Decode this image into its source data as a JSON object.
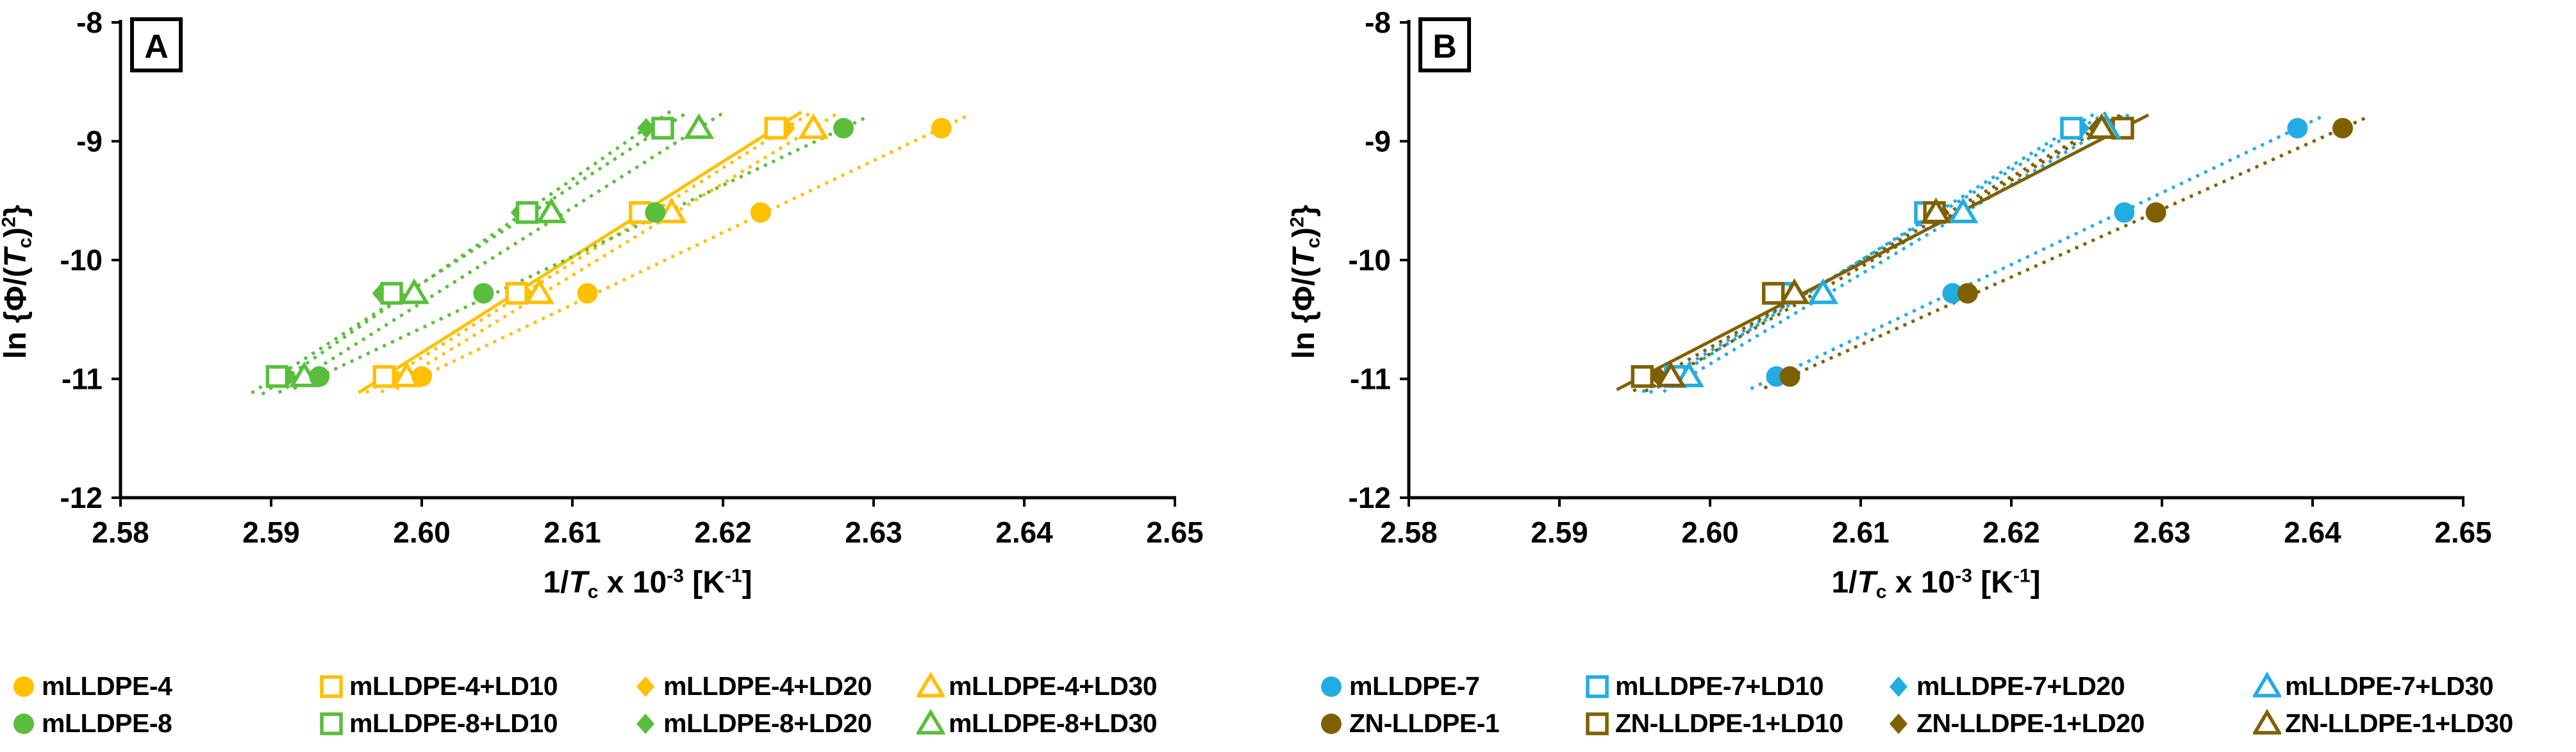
{
  "colors": {
    "yellow": "#FFC000",
    "green": "#5ABE3C",
    "blue": "#23ACE2",
    "brown": "#7F6000",
    "axis": "#000000"
  },
  "chart_data": [
    {
      "type": "scatter",
      "panel_label": "A",
      "xlabel_parts": [
        {
          "t": "1/"
        },
        {
          "t": "T",
          "i": 1
        },
        {
          "t": "c",
          "sub": 1
        },
        {
          "t": " x 10"
        },
        {
          "t": "-3",
          "sup": 1
        },
        {
          "t": " [K"
        },
        {
          "t": "-1",
          "sup": 1
        },
        {
          "t": "]"
        }
      ],
      "ylabel_parts": [
        {
          "t": "ln {Φ/("
        },
        {
          "t": "T",
          "i": 1
        },
        {
          "t": "c",
          "sub": 1
        },
        {
          "t": ")"
        },
        {
          "t": "2",
          "sup": 1
        },
        {
          "t": "}"
        }
      ],
      "xlim": [
        2.58,
        2.65
      ],
      "ylim": [
        -12,
        -8
      ],
      "xticks": [
        "2.58",
        "2.59",
        "2.60",
        "2.61",
        "2.62",
        "2.63",
        "2.64",
        "2.65"
      ],
      "yticks": [
        "-8",
        "-9",
        "-10",
        "-11",
        "-12"
      ],
      "grid": false,
      "series": [
        {
          "name": "mLLDPE-4",
          "marker": "circle",
          "color": "yellow",
          "line": "dotted",
          "x": [
            2.6345,
            2.6225,
            2.611,
            2.6
          ],
          "y": [
            -8.89,
            -9.6,
            -10.28,
            -10.98
          ]
        },
        {
          "name": "mLLDPE-4+LD10",
          "marker": "square",
          "color": "yellow",
          "line": "solid",
          "x": [
            2.6235,
            2.6145,
            2.6063,
            2.5975
          ],
          "y": [
            -8.89,
            -9.6,
            -10.28,
            -10.98
          ]
        },
        {
          "name": "mLLDPE-4+LD20",
          "marker": "diamond",
          "color": "yellow",
          "line": "dotted",
          "x": [
            2.6242,
            2.615,
            2.6068,
            2.598
          ],
          "y": [
            -8.89,
            -9.6,
            -10.28,
            -10.98
          ]
        },
        {
          "name": "mLLDPE-4+LD30",
          "marker": "triangle",
          "color": "yellow",
          "line": "dotted",
          "x": [
            2.626,
            2.6166,
            2.6078,
            2.599
          ],
          "y": [
            -8.89,
            -9.6,
            -10.28,
            -10.98
          ]
        },
        {
          "name": "mLLDPE-8",
          "marker": "circle",
          "color": "green",
          "line": "dotted",
          "x": [
            2.628,
            2.6155,
            2.6041,
            2.5932
          ],
          "y": [
            -8.89,
            -9.6,
            -10.28,
            -10.98
          ]
        },
        {
          "name": "mLLDPE-8+LD10",
          "marker": "square",
          "color": "green",
          "line": "dotted",
          "x": [
            2.616,
            2.607,
            2.598,
            2.5904
          ],
          "y": [
            -8.89,
            -9.6,
            -10.28,
            -10.98
          ]
        },
        {
          "name": "mLLDPE-8+LD20",
          "marker": "diamond",
          "color": "green",
          "line": "dotted",
          "x": [
            2.6149,
            2.6065,
            2.5973,
            2.5911
          ],
          "y": [
            -8.89,
            -9.6,
            -10.28,
            -10.98
          ]
        },
        {
          "name": "mLLDPE-8+LD30",
          "marker": "triangle",
          "color": "green",
          "line": "dotted",
          "x": [
            2.6184,
            2.6086,
            2.5995,
            2.5922
          ],
          "y": [
            -8.89,
            -9.6,
            -10.28,
            -10.98
          ]
        }
      ]
    },
    {
      "type": "scatter",
      "panel_label": "B",
      "xlabel_parts": [
        {
          "t": "1/"
        },
        {
          "t": "T",
          "i": 1
        },
        {
          "t": "c",
          "sub": 1
        },
        {
          "t": " x 10"
        },
        {
          "t": "-3",
          "sup": 1
        },
        {
          "t": " [K"
        },
        {
          "t": "-1",
          "sup": 1
        },
        {
          "t": "]"
        }
      ],
      "ylabel_parts": [
        {
          "t": "ln {Φ/("
        },
        {
          "t": "T",
          "i": 1
        },
        {
          "t": "c",
          "sub": 1
        },
        {
          "t": ")"
        },
        {
          "t": "2",
          "sup": 1
        },
        {
          "t": "}"
        }
      ],
      "xlim": [
        2.58,
        2.65
      ],
      "ylim": [
        -12,
        -8
      ],
      "xticks": [
        "2.58",
        "2.59",
        "2.60",
        "2.61",
        "2.62",
        "2.63",
        "2.64",
        "2.65"
      ],
      "yticks": [
        "-8",
        "-9",
        "-10",
        "-11",
        "-12"
      ],
      "grid": false,
      "series": [
        {
          "name": "mLLDPE-7",
          "marker": "circle",
          "color": "blue",
          "line": "dotted",
          "x": [
            2.639,
            2.6275,
            2.6161,
            2.6044
          ],
          "y": [
            -8.89,
            -9.6,
            -10.28,
            -10.98
          ]
        },
        {
          "name": "mLLDPE-7+LD10",
          "marker": "square",
          "color": "blue",
          "line": "dotted",
          "x": [
            2.624,
            2.6143,
            2.6047,
            2.5977
          ],
          "y": [
            -8.89,
            -9.6,
            -10.28,
            -10.98
          ]
        },
        {
          "name": "mLLDPE-7+LD20",
          "marker": "diamond",
          "color": "blue",
          "line": "dotted",
          "x": [
            2.6246,
            2.6148,
            2.6052,
            2.5972
          ],
          "y": [
            -8.89,
            -9.6,
            -10.28,
            -10.98
          ]
        },
        {
          "name": "mLLDPE-7+LD30",
          "marker": "triangle",
          "color": "blue",
          "line": "dotted",
          "x": [
            2.6263,
            2.6168,
            2.6075,
            2.5986
          ],
          "y": [
            -8.89,
            -9.6,
            -10.28,
            -10.98
          ]
        },
        {
          "name": "ZN-LLDPE-1",
          "marker": "circle",
          "color": "brown",
          "line": "dotted",
          "x": [
            2.642,
            2.6296,
            2.6171,
            2.6053
          ],
          "y": [
            -8.89,
            -9.6,
            -10.28,
            -10.98
          ]
        },
        {
          "name": "ZN-LLDPE-1+LD10",
          "marker": "square",
          "color": "brown",
          "line": "solid",
          "x": [
            2.6274,
            2.6149,
            2.6042,
            2.5955
          ],
          "y": [
            -8.89,
            -9.6,
            -10.28,
            -10.98
          ]
        },
        {
          "name": "ZN-LLDPE-1+LD20",
          "marker": "diamond",
          "color": "brown",
          "line": "dotted",
          "x": [
            2.6257,
            2.6153,
            2.605,
            2.5966
          ],
          "y": [
            -8.89,
            -9.6,
            -10.28,
            -10.98
          ]
        },
        {
          "name": "ZN-LLDPE-1+LD30",
          "marker": "triangle",
          "color": "brown",
          "line": "dotted",
          "x": [
            2.626,
            2.615,
            2.6056,
            2.5974
          ],
          "y": [
            -8.89,
            -9.6,
            -10.28,
            -10.98
          ]
        }
      ]
    }
  ],
  "legend": {
    "rows": [
      [
        {
          "marker": "circle",
          "color": "yellow",
          "label": "mLLDPE-4"
        },
        {
          "marker": "square",
          "color": "yellow",
          "label": "mLLDPE-4+LD10"
        },
        {
          "marker": "diamond",
          "color": "yellow",
          "label": "mLLDPE-4+LD20"
        },
        {
          "marker": "triangle",
          "color": "yellow",
          "label": "mLLDPE-4+LD30"
        },
        {
          "marker": "circle",
          "color": "blue",
          "label": "mLLDPE-7"
        },
        {
          "marker": "square",
          "color": "blue",
          "label": "mLLDPE-7+LD10"
        },
        {
          "marker": "diamond",
          "color": "blue",
          "label": "mLLDPE-7+LD20"
        },
        {
          "marker": "triangle",
          "color": "blue",
          "label": "mLLDPE-7+LD30"
        }
      ],
      [
        {
          "marker": "circle",
          "color": "green",
          "label": "mLLDPE-8"
        },
        {
          "marker": "square",
          "color": "green",
          "label": "mLLDPE-8+LD10"
        },
        {
          "marker": "diamond",
          "color": "green",
          "label": "mLLDPE-8+LD20"
        },
        {
          "marker": "triangle",
          "color": "green",
          "label": "mLLDPE-8+LD30"
        },
        {
          "marker": "circle",
          "color": "brown",
          "label": "ZN-LLDPE-1"
        },
        {
          "marker": "square",
          "color": "brown",
          "label": "ZN-LLDPE-1+LD10"
        },
        {
          "marker": "diamond",
          "color": "brown",
          "label": "ZN-LLDPE-1+LD20"
        },
        {
          "marker": "triangle",
          "color": "brown",
          "label": "ZN-LLDPE-1+LD30"
        }
      ]
    ]
  }
}
